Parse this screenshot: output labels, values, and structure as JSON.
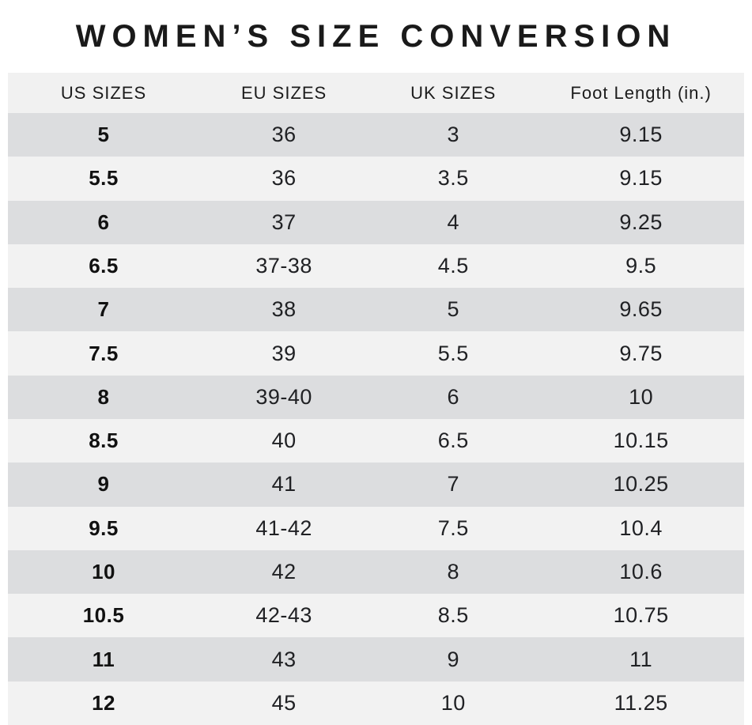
{
  "title": "WOMEN’S SIZE CONVERSION",
  "colors": {
    "header_bg": "#f1f1f1",
    "row_dark_bg": "#dcdddf",
    "row_light_bg": "#f2f2f2",
    "title_text": "#1a1a1a",
    "cell_text": "#202124"
  },
  "chart_data": {
    "type": "table",
    "title": "WOMEN’S SIZE CONVERSION",
    "columns": [
      "US SIZES",
      "EU SIZES",
      "UK SIZES",
      "Foot Length (in.)"
    ],
    "rows": [
      [
        "5",
        "36",
        "3",
        "9.15"
      ],
      [
        "5.5",
        "36",
        "3.5",
        "9.15"
      ],
      [
        "6",
        "37",
        "4",
        "9.25"
      ],
      [
        "6.5",
        "37-38",
        "4.5",
        "9.5"
      ],
      [
        "7",
        "38",
        "5",
        "9.65"
      ],
      [
        "7.5",
        "39",
        "5.5",
        "9.75"
      ],
      [
        "8",
        "39-40",
        "6",
        "10"
      ],
      [
        "8.5",
        "40",
        "6.5",
        "10.15"
      ],
      [
        "9",
        "41",
        "7",
        "10.25"
      ],
      [
        "9.5",
        "41-42",
        "7.5",
        "10.4"
      ],
      [
        "10",
        "42",
        "8",
        "10.6"
      ],
      [
        "10.5",
        "42-43",
        "8.5",
        "10.75"
      ],
      [
        "11",
        "43",
        "9",
        "11"
      ],
      [
        "12",
        "45",
        "10",
        "11.25"
      ]
    ]
  }
}
